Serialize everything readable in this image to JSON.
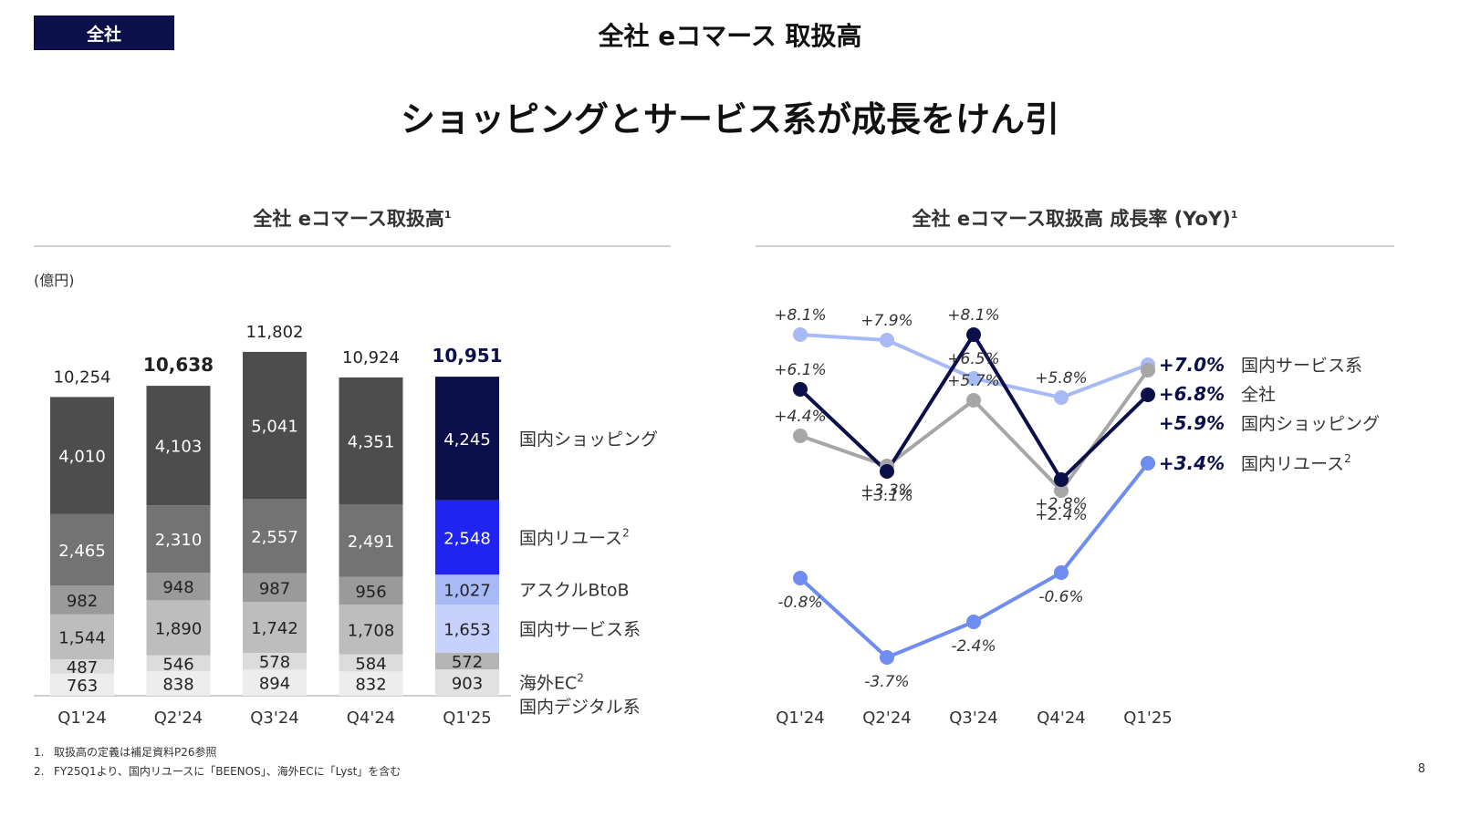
{
  "header": {
    "badge": "全社",
    "title": "全社 eコマース 取扱高",
    "headline": "ショッピングとサービス系が成長をけん引"
  },
  "left_panel": {
    "title": "全社 eコマース取扱高",
    "title_sup": "1",
    "unit": "(億円)"
  },
  "right_panel": {
    "title": "全社 eコマース取扱高 成長率 (YoY)",
    "title_sup": "1"
  },
  "footnotes": [
    {
      "num": "1.",
      "text": "取扱高の定義は補足資料P26参照"
    },
    {
      "num": "2.",
      "text": "FY25Q1より、国内リユースに「BEENOS」、海外ECに「Lyst」を含む"
    }
  ],
  "page_number": "8",
  "colors": {
    "navy": "#0b0f4a",
    "blue": "#1f24f0",
    "light_blue": "#6f8cf0",
    "pale_blue": "#a8baf6",
    "dark_gray": "#4d4d4d",
    "gray": "#a6a6a6"
  },
  "chart_data": [
    {
      "type": "bar",
      "stacked": true,
      "title": "全社 eコマース取扱高",
      "unit": "(億円)",
      "categories": [
        "Q1'24",
        "Q2'24",
        "Q3'24",
        "Q4'24",
        "Q1'25"
      ],
      "totals": [
        "10,254",
        "10,638",
        "11,802",
        "10,924",
        "10,951"
      ],
      "totals_bold": [
        false,
        true,
        false,
        false,
        true
      ],
      "ylim": [
        0,
        12000
      ],
      "series": [
        {
          "name": "海外EC",
          "sup": "2",
          "values": [
            763,
            838,
            894,
            832,
            903
          ],
          "labels": [
            "763",
            "838",
            "894",
            "832",
            "903"
          ],
          "color": "#ededed",
          "highlight_color": "#e2e2e2",
          "text_color": "#222222",
          "highlight_text_color": "#222222"
        },
        {
          "name": "国内デジタル系",
          "sup": "",
          "values": [
            487,
            546,
            578,
            584,
            572
          ],
          "labels": [
            "487",
            "546",
            "578",
            "584",
            "572"
          ],
          "color": "#dcdcdc",
          "highlight_color": "#b4b4b4",
          "text_color": "#222222",
          "highlight_text_color": "#222222"
        },
        {
          "name": "国内サービス系",
          "sup": "",
          "values": [
            1544,
            1890,
            1742,
            1708,
            1653
          ],
          "labels": [
            "1,544",
            "1,890",
            "1,742",
            "1,708",
            "1,653"
          ],
          "color": "#bdbdbd",
          "highlight_color": "#c6d2fb",
          "text_color": "#222222",
          "highlight_text_color": "#222222"
        },
        {
          "name": "アスクルBtoB",
          "sup": "",
          "values": [
            982,
            948,
            987,
            956,
            1027
          ],
          "labels": [
            "982",
            "948",
            "987",
            "956",
            "1,027"
          ],
          "color": "#9a9a9a",
          "highlight_color": "#a8baf6",
          "text_color": "#222222",
          "highlight_text_color": "#222222"
        },
        {
          "name": "国内リユース",
          "sup": "2",
          "values": [
            2465,
            2310,
            2557,
            2491,
            2548
          ],
          "labels": [
            "2,465",
            "2,310",
            "2,557",
            "2,491",
            "2,548"
          ],
          "color": "#737373",
          "highlight_color": "#1f24f0",
          "text_color": "#ffffff",
          "highlight_text_color": "#ffffff"
        },
        {
          "name": "国内ショッピング",
          "sup": "",
          "values": [
            4010,
            4103,
            5041,
            4351,
            4245
          ],
          "labels": [
            "4,010",
            "4,103",
            "5,041",
            "4,351",
            "4,245"
          ],
          "color": "#4d4d4d",
          "highlight_color": "#0b0f4a",
          "text_color": "#ffffff",
          "highlight_text_color": "#ffffff"
        }
      ]
    },
    {
      "type": "line",
      "title": "全社 eコマース取扱高 成長率 (YoY)",
      "categories": [
        "Q1'24",
        "Q2'24",
        "Q3'24",
        "Q4'24",
        "Q1'25"
      ],
      "unit": "%",
      "series": [
        {
          "name": "国内サービス系",
          "sup": "",
          "values": [
            8.1,
            7.9,
            6.5,
            5.8,
            7.0
          ],
          "labels": [
            "+8.1%",
            "+7.9%",
            "+6.5%",
            "+5.8%",
            "+7.0%"
          ],
          "color": "#a8baf6"
        },
        {
          "name": "全社",
          "sup": "",
          "values": [
            4.4,
            3.3,
            5.7,
            2.4,
            6.8
          ],
          "labels": [
            "+4.4%",
            "+3.3%",
            "+5.7%",
            "+2.4%",
            "+6.8%"
          ],
          "color": "#a6a6a6"
        },
        {
          "name": "国内ショッピング",
          "sup": "",
          "values": [
            6.1,
            3.1,
            8.1,
            2.8,
            5.9
          ],
          "labels": [
            "+6.1%",
            "+3.1%",
            "+8.1%",
            "+2.8%",
            "+5.9%"
          ],
          "color": "#0b0f4a"
        },
        {
          "name": "国内リユース",
          "sup": "2",
          "values": [
            -0.8,
            -3.7,
            -2.4,
            -0.6,
            3.4
          ],
          "labels": [
            "-0.8%",
            "-3.7%",
            "-2.4%",
            "-0.6%",
            "+3.4%"
          ],
          "color": "#6f8cf0"
        }
      ]
    }
  ]
}
